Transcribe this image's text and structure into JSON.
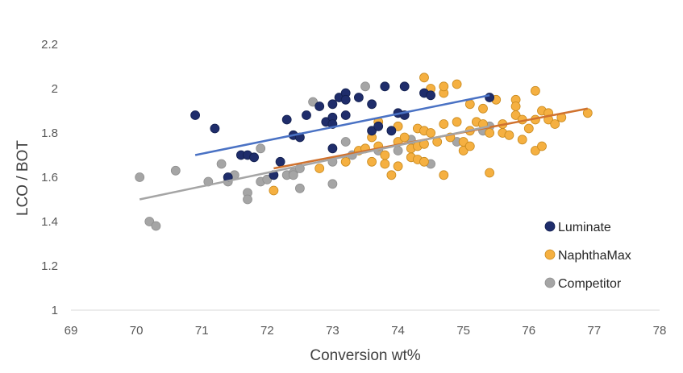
{
  "chart_data": {
    "type": "scatter",
    "title": "",
    "xlabel": "Conversion wt%",
    "ylabel": "LCO / BOT",
    "xlim": [
      69,
      78
    ],
    "ylim": [
      1,
      2.2
    ],
    "xticks": [
      "69",
      "70",
      "71",
      "72",
      "73",
      "74",
      "75",
      "76",
      "77",
      "78"
    ],
    "yticks": [
      "1",
      "1.2",
      "1.4",
      "1.6",
      "1.8",
      "2",
      "2.2"
    ],
    "grid": false,
    "legend_position": "bottom-right",
    "series": [
      {
        "name": "Luminate",
        "color": "#1f2d6b",
        "trend_color": "#4a72c4",
        "trendline": [
          [
            70.9,
            1.7
          ],
          [
            75.4,
            1.97
          ]
        ],
        "points": [
          [
            70.9,
            1.88
          ],
          [
            71.2,
            1.82
          ],
          [
            71.4,
            1.6
          ],
          [
            71.6,
            1.7
          ],
          [
            71.7,
            1.7
          ],
          [
            71.8,
            1.69
          ],
          [
            72.1,
            1.61
          ],
          [
            72.2,
            1.67
          ],
          [
            72.3,
            1.86
          ],
          [
            72.4,
            1.79
          ],
          [
            72.5,
            1.78
          ],
          [
            72.6,
            1.88
          ],
          [
            72.8,
            1.92
          ],
          [
            72.9,
            1.85
          ],
          [
            73.0,
            1.93
          ],
          [
            73.0,
            1.87
          ],
          [
            73.0,
            1.84
          ],
          [
            73.0,
            1.73
          ],
          [
            73.1,
            1.96
          ],
          [
            73.2,
            1.98
          ],
          [
            73.2,
            1.95
          ],
          [
            73.2,
            1.88
          ],
          [
            73.4,
            1.96
          ],
          [
            73.6,
            1.93
          ],
          [
            73.6,
            1.81
          ],
          [
            73.7,
            1.83
          ],
          [
            73.8,
            2.01
          ],
          [
            73.9,
            1.81
          ],
          [
            74.0,
            1.89
          ],
          [
            74.1,
            2.01
          ],
          [
            74.1,
            1.88
          ],
          [
            74.4,
            1.98
          ],
          [
            74.5,
            1.97
          ],
          [
            75.4,
            1.96
          ]
        ]
      },
      {
        "name": "NaphthaMax",
        "color": "#f5b041",
        "trend_color": "#d0722e",
        "trendline": [
          [
            72.1,
            1.64
          ],
          [
            76.9,
            1.91
          ]
        ],
        "points": [
          [
            72.1,
            1.54
          ],
          [
            72.8,
            1.64
          ],
          [
            73.2,
            1.67
          ],
          [
            73.4,
            1.72
          ],
          [
            73.5,
            1.73
          ],
          [
            73.6,
            1.67
          ],
          [
            73.6,
            1.78
          ],
          [
            73.7,
            1.85
          ],
          [
            73.7,
            1.74
          ],
          [
            73.8,
            1.66
          ],
          [
            73.8,
            1.7
          ],
          [
            73.9,
            1.61
          ],
          [
            74.0,
            1.76
          ],
          [
            74.0,
            1.83
          ],
          [
            74.0,
            1.65
          ],
          [
            74.1,
            1.78
          ],
          [
            74.2,
            1.73
          ],
          [
            74.2,
            1.69
          ],
          [
            74.3,
            1.82
          ],
          [
            74.3,
            1.68
          ],
          [
            74.3,
            1.74
          ],
          [
            74.4,
            2.05
          ],
          [
            74.4,
            1.81
          ],
          [
            74.4,
            1.75
          ],
          [
            74.4,
            1.67
          ],
          [
            74.5,
            2.0
          ],
          [
            74.5,
            1.8
          ],
          [
            74.6,
            1.76
          ],
          [
            74.7,
            1.98
          ],
          [
            74.7,
            2.01
          ],
          [
            74.7,
            1.84
          ],
          [
            74.7,
            1.61
          ],
          [
            74.8,
            1.78
          ],
          [
            74.9,
            1.85
          ],
          [
            74.9,
            2.02
          ],
          [
            75.0,
            1.72
          ],
          [
            75.0,
            1.76
          ],
          [
            75.1,
            1.93
          ],
          [
            75.1,
            1.81
          ],
          [
            75.1,
            1.74
          ],
          [
            75.2,
            1.85
          ],
          [
            75.3,
            1.91
          ],
          [
            75.3,
            1.84
          ],
          [
            75.4,
            1.8
          ],
          [
            75.4,
            1.62
          ],
          [
            75.5,
            1.95
          ],
          [
            75.6,
            1.84
          ],
          [
            75.6,
            1.8
          ],
          [
            75.7,
            1.79
          ],
          [
            75.8,
            1.95
          ],
          [
            75.8,
            1.92
          ],
          [
            75.8,
            1.88
          ],
          [
            75.9,
            1.86
          ],
          [
            75.9,
            1.77
          ],
          [
            76.0,
            1.82
          ],
          [
            76.1,
            1.99
          ],
          [
            76.1,
            1.86
          ],
          [
            76.1,
            1.72
          ],
          [
            76.2,
            1.9
          ],
          [
            76.2,
            1.74
          ],
          [
            76.3,
            1.89
          ],
          [
            76.3,
            1.86
          ],
          [
            76.4,
            1.84
          ],
          [
            76.5,
            1.87
          ],
          [
            76.9,
            1.89
          ]
        ]
      },
      {
        "name": "Competitor",
        "color": "#a5a5a5",
        "trend_color": "#a5a5a5",
        "trendline": [
          [
            70.05,
            1.5
          ],
          [
            75.4,
            1.83
          ]
        ],
        "points": [
          [
            70.05,
            1.6
          ],
          [
            70.2,
            1.4
          ],
          [
            70.3,
            1.38
          ],
          [
            70.6,
            1.63
          ],
          [
            71.1,
            1.58
          ],
          [
            71.3,
            1.66
          ],
          [
            71.4,
            1.58
          ],
          [
            71.5,
            1.61
          ],
          [
            71.7,
            1.53
          ],
          [
            71.7,
            1.5
          ],
          [
            71.9,
            1.58
          ],
          [
            71.9,
            1.73
          ],
          [
            72.0,
            1.59
          ],
          [
            72.3,
            1.61
          ],
          [
            72.4,
            1.62
          ],
          [
            72.4,
            1.61
          ],
          [
            72.5,
            1.64
          ],
          [
            72.5,
            1.55
          ],
          [
            72.7,
            1.94
          ],
          [
            73.0,
            1.57
          ],
          [
            73.0,
            1.67
          ],
          [
            73.2,
            1.76
          ],
          [
            73.3,
            1.7
          ],
          [
            73.5,
            2.01
          ],
          [
            73.7,
            1.72
          ],
          [
            74.0,
            1.72
          ],
          [
            74.2,
            1.77
          ],
          [
            74.5,
            1.66
          ],
          [
            74.9,
            1.76
          ],
          [
            75.3,
            1.81
          ],
          [
            75.4,
            1.83
          ]
        ]
      }
    ]
  }
}
